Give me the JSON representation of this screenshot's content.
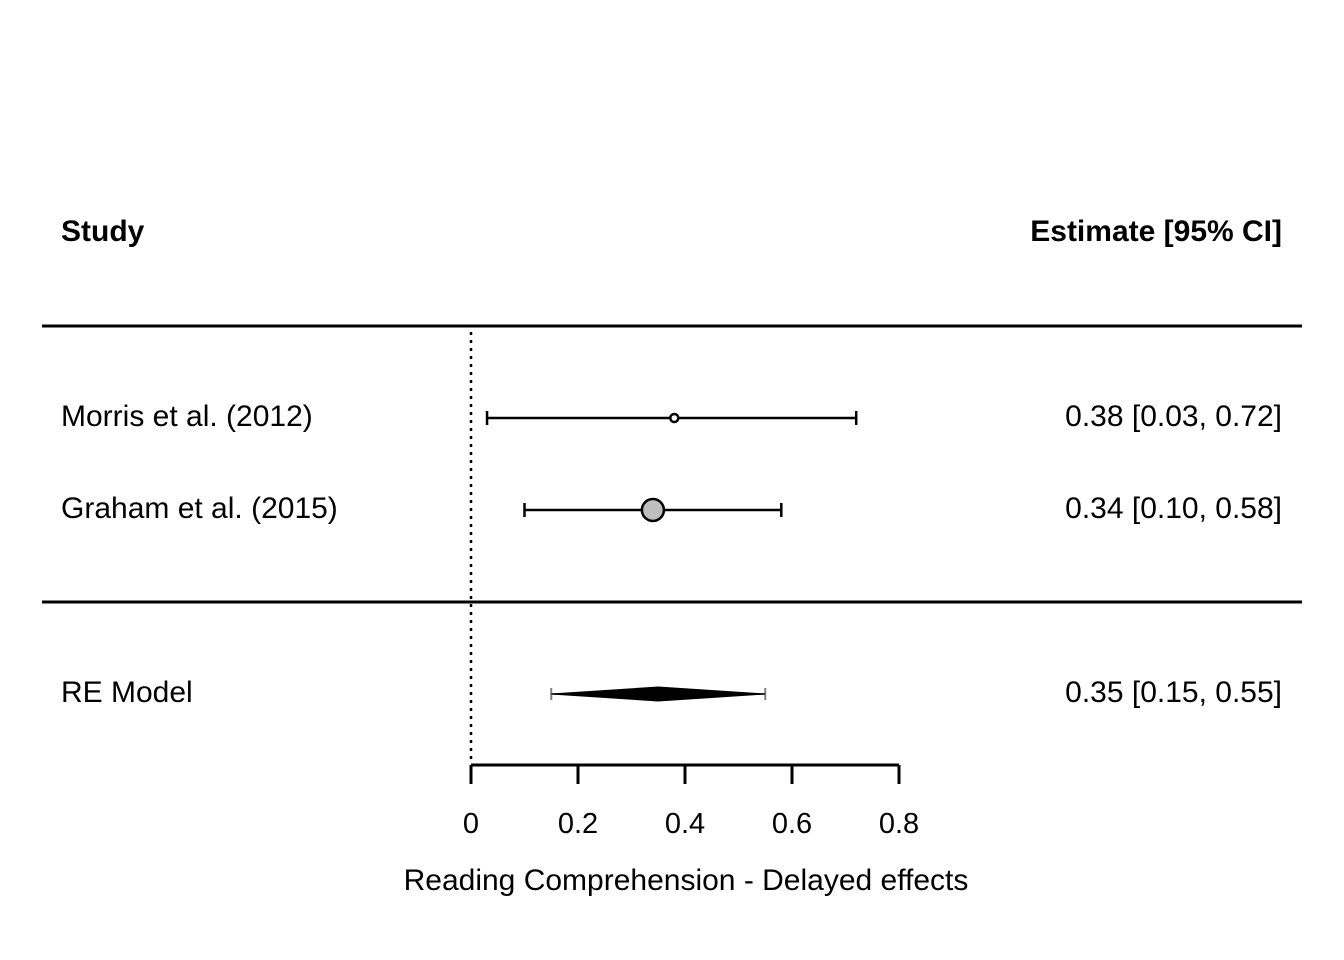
{
  "chart_data": {
    "type": "forest",
    "headers": {
      "left": "Study",
      "right": "Estimate [95% CI]"
    },
    "studies": [
      {
        "label": "Morris et al. (2012)",
        "estimate": 0.38,
        "ci": [
          0.03,
          0.72
        ],
        "text": "0.38 [0.03, 0.72]"
      },
      {
        "label": "Graham et al. (2015)",
        "estimate": 0.34,
        "ci": [
          0.1,
          0.58
        ],
        "text": "0.34 [0.10, 0.58]"
      }
    ],
    "summary": {
      "label": "RE Model",
      "estimate": 0.35,
      "ci": [
        0.15,
        0.55
      ],
      "text": "0.35 [0.15, 0.55]"
    },
    "xaxis": {
      "label": "Reading Comprehension - Delayed effects",
      "ticks": [
        0,
        0.2,
        0.4,
        0.6,
        0.8
      ],
      "tick_labels": [
        "0",
        "0.2",
        "0.4",
        "0.6",
        "0.8"
      ],
      "range": [
        0,
        0.8
      ]
    },
    "reference_line": 0,
    "colors": {
      "line": "#000000",
      "large_point_fill": "#bebebe",
      "summary_whisker": "#808080"
    }
  }
}
